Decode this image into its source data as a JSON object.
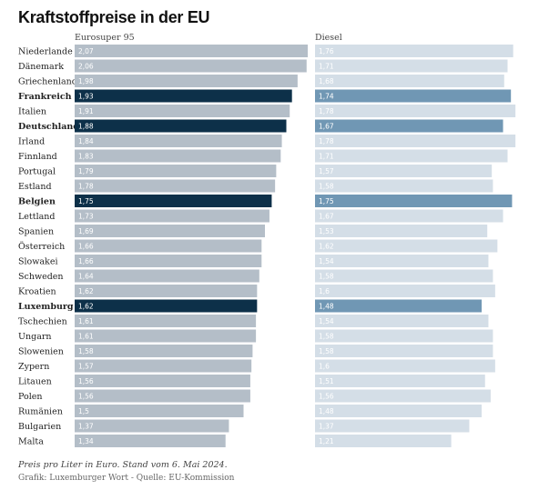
{
  "header": {
    "title": "Kraftstoffpreise in der EU"
  },
  "footer": {
    "note": "Preis pro Liter in Euro. Stand vom 6. Mai 2024.",
    "source": "Grafik: Luxemburger Wort - Quelle: EU-Kommission"
  },
  "colors": {
    "e95_normal": "#b4bec8",
    "e95_highlight": "#0d3049",
    "diesel_normal": "#d4dee7",
    "diesel_highlight": "#7097b4",
    "label_light": "#ffffff",
    "text": "#222222"
  },
  "chart_data": {
    "type": "bar",
    "orientation": "horizontal",
    "title": "Kraftstoffpreise in der EU",
    "unit": "Euro pro Liter",
    "categories": [
      "Niederlande",
      "Dänemark",
      "Griechenland",
      "Frankreich",
      "Italien",
      "Deutschland",
      "Irland",
      "Finnland",
      "Portugal",
      "Estland",
      "Belgien",
      "Lettland",
      "Spanien",
      "Österreich",
      "Slowakei",
      "Schweden",
      "Kroatien",
      "Luxemburg",
      "Tschechien",
      "Ungarn",
      "Slowenien",
      "Zypern",
      "Litauen",
      "Polen",
      "Rumänien",
      "Bulgarien",
      "Malta"
    ],
    "highlighted": [
      "Frankreich",
      "Deutschland",
      "Belgien",
      "Luxemburg"
    ],
    "series": [
      {
        "name": "Eurosuper 95",
        "values": [
          2.07,
          2.06,
          1.98,
          1.93,
          1.91,
          1.88,
          1.84,
          1.83,
          1.79,
          1.78,
          1.75,
          1.73,
          1.69,
          1.66,
          1.66,
          1.64,
          1.62,
          1.62,
          1.61,
          1.61,
          1.58,
          1.57,
          1.56,
          1.56,
          1.5,
          1.37,
          1.34
        ],
        "labels": [
          "2,07",
          "2,06",
          "1,98",
          "1,93",
          "1,91",
          "1,88",
          "1,84",
          "1,83",
          "1,79",
          "1,78",
          "1,75",
          "1,73",
          "1,69",
          "1,66",
          "1,66",
          "1,64",
          "1,62",
          "1,62",
          "1,61",
          "1,61",
          "1,58",
          "1,57",
          "1,56",
          "1,56",
          "1,5",
          "1,37",
          "1,34"
        ]
      },
      {
        "name": "Diesel",
        "values": [
          1.76,
          1.71,
          1.68,
          1.74,
          1.78,
          1.67,
          1.78,
          1.71,
          1.57,
          1.58,
          1.75,
          1.67,
          1.53,
          1.62,
          1.54,
          1.58,
          1.6,
          1.48,
          1.54,
          1.58,
          1.58,
          1.6,
          1.51,
          1.56,
          1.48,
          1.37,
          1.21
        ],
        "labels": [
          "1,76",
          "1,71",
          "1,68",
          "1,74",
          "1,78",
          "1,67",
          "1,78",
          "1,71",
          "1,57",
          "1,58",
          "1,75",
          "1,67",
          "1,53",
          "1,62",
          "1,54",
          "1,58",
          "1,6",
          "1,48",
          "1,54",
          "1,58",
          "1,58",
          "1,6",
          "1,51",
          "1,56",
          "1,48",
          "1,37",
          "1,21"
        ]
      }
    ],
    "xlim": [
      0,
      2.07
    ]
  }
}
